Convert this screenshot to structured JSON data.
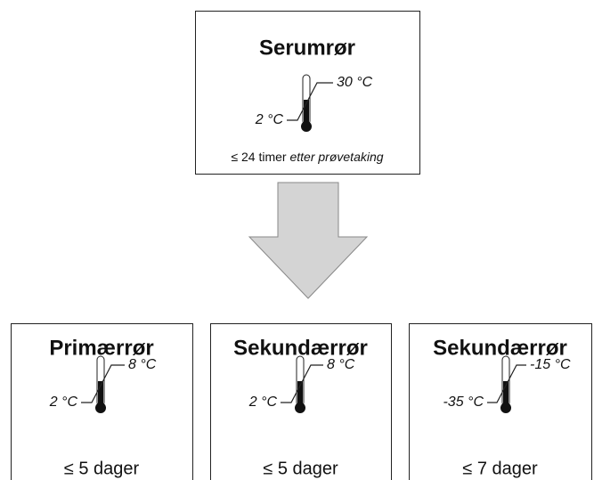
{
  "top": {
    "title": "Serumrør",
    "temp_high": "30 °C",
    "temp_low": "2 °C",
    "note": "≤ 24 timer",
    "note_italic": "etter prøvetaking"
  },
  "boxes": [
    {
      "title": "Primærrør",
      "temp_high": "8 °C",
      "temp_low": "2 °C",
      "note": "≤ 5 dager"
    },
    {
      "title": "Sekundærrør",
      "temp_high": "8 °C",
      "temp_low": "2 °C",
      "note": "≤ 5 dager"
    },
    {
      "title": "Sekundærrør",
      "temp_high": "-15 °C",
      "temp_low": "-35 °C",
      "note": "≤ 7 dager"
    }
  ]
}
